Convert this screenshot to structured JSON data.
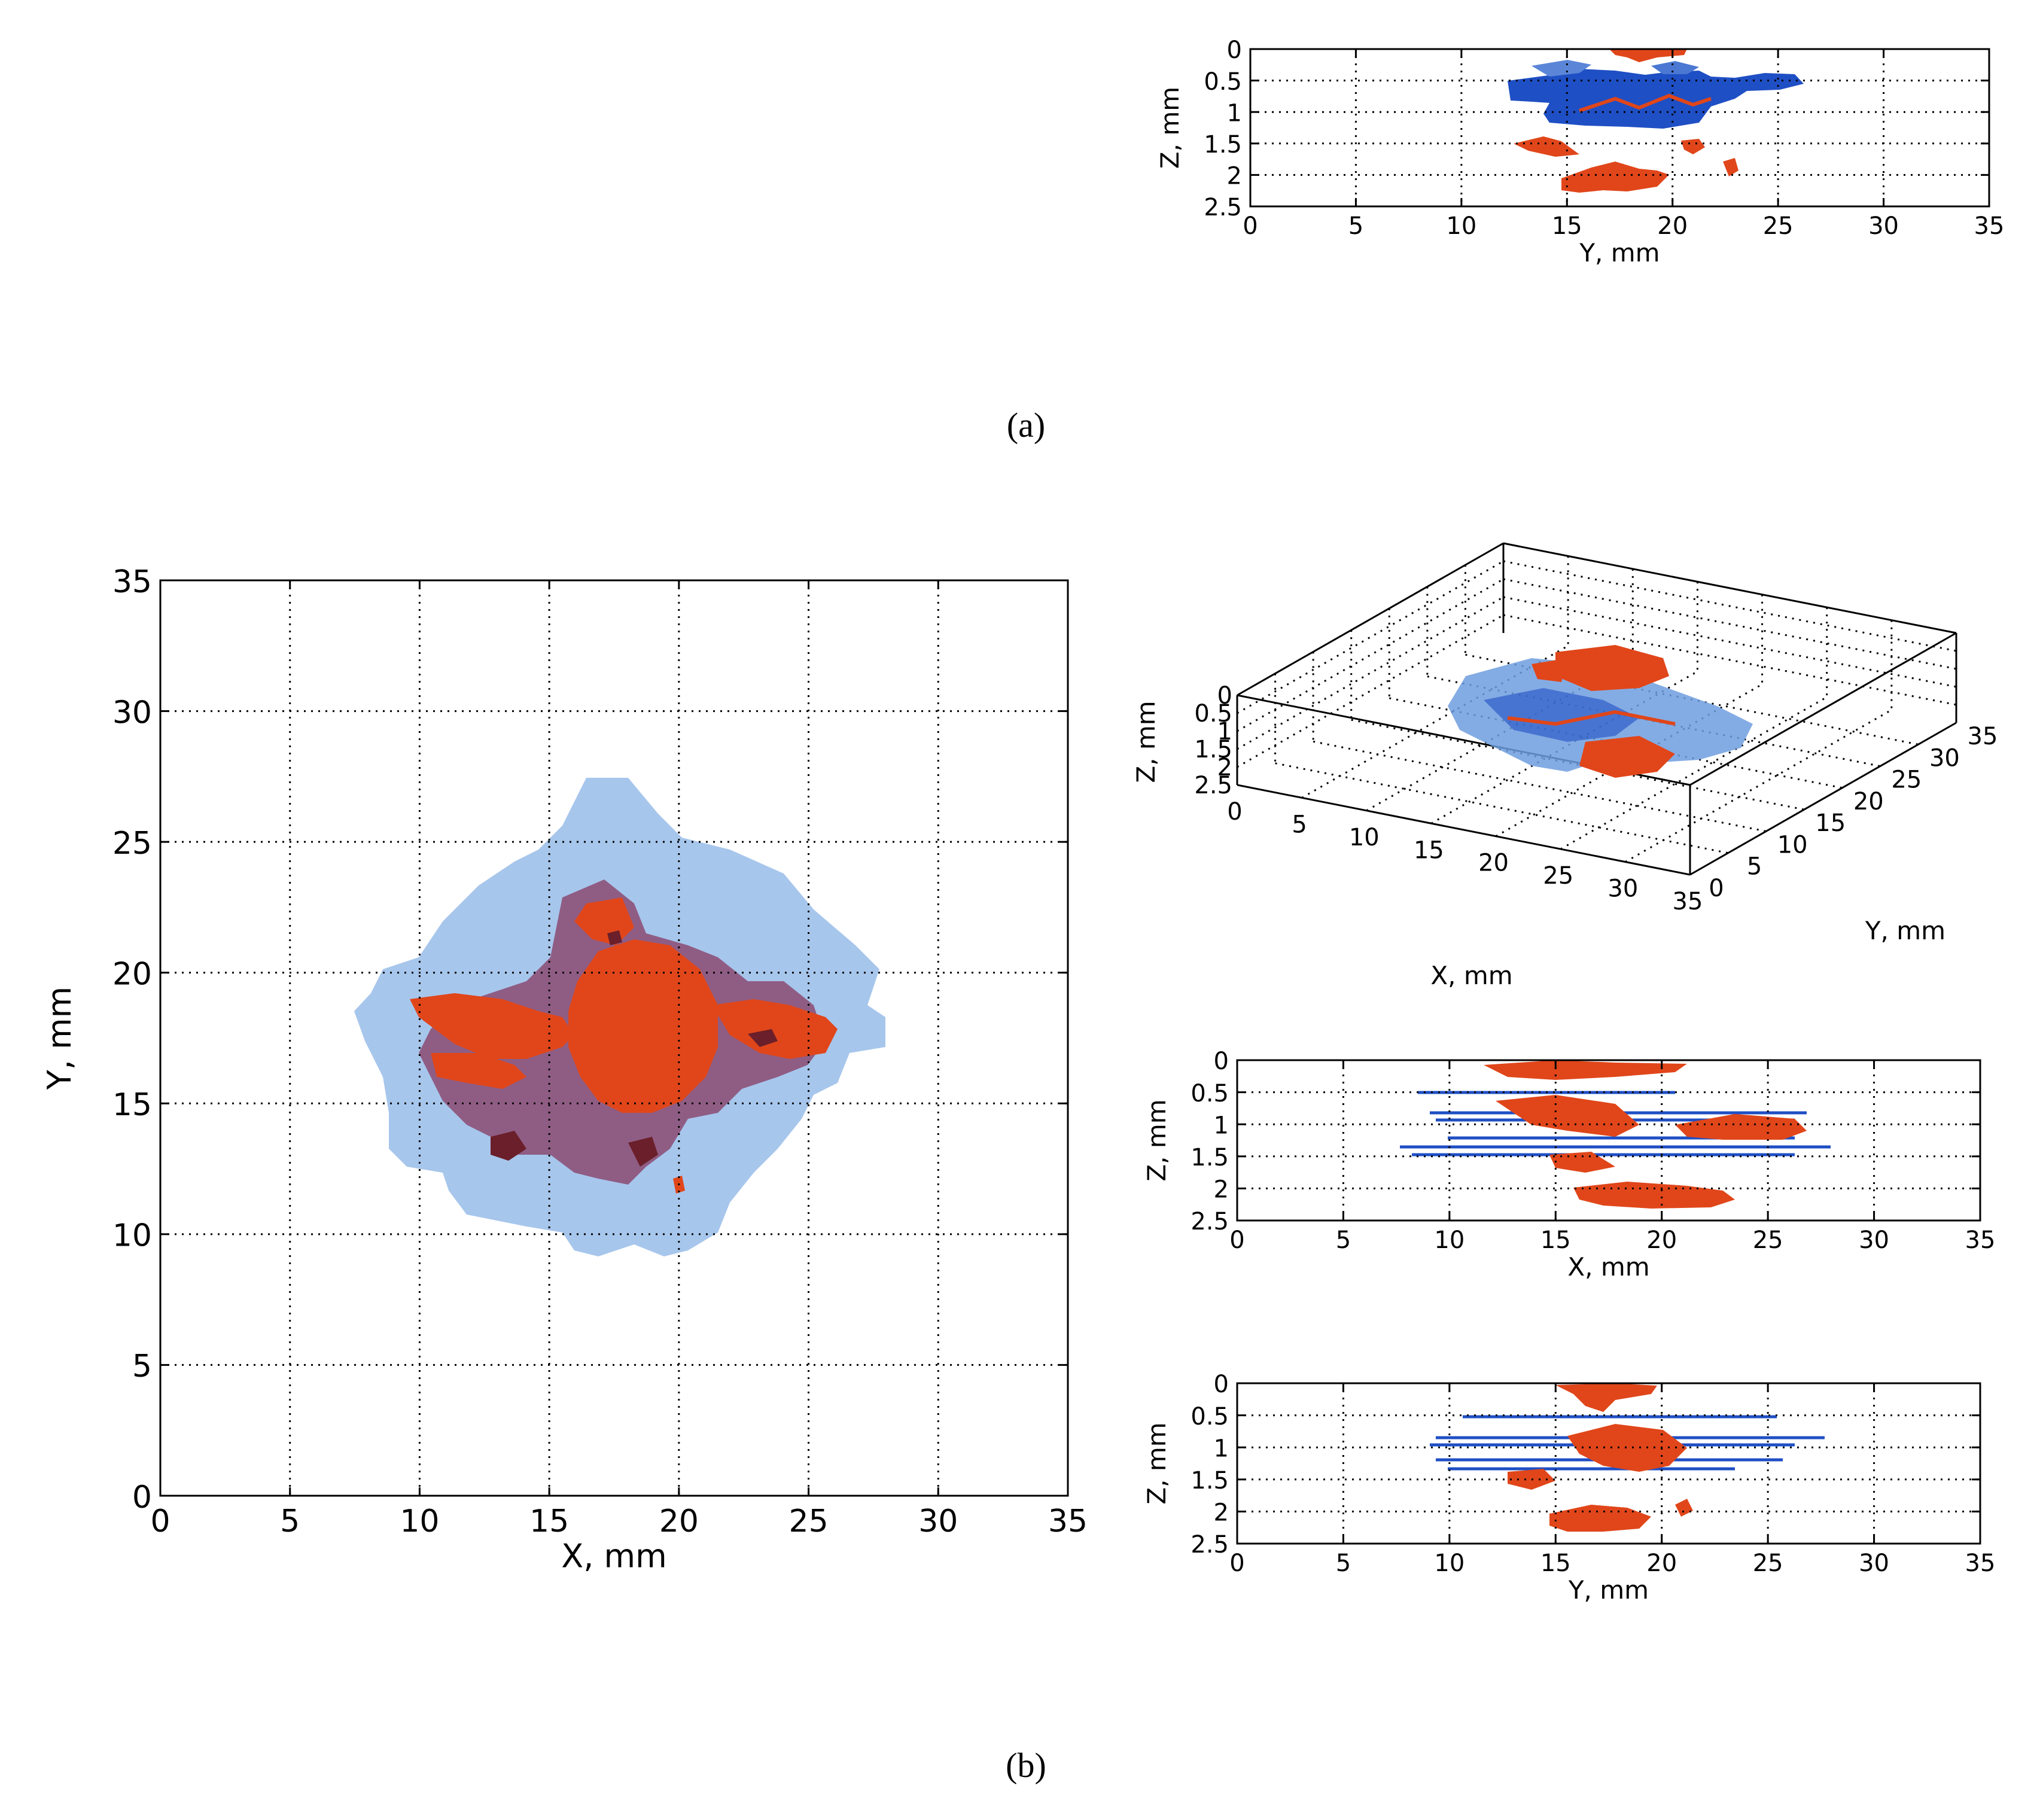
{
  "panels": {
    "a": {
      "caption": "(a)"
    },
    "b": {
      "caption": "(b)"
    }
  },
  "colors": {
    "damage_light": "#a7c6ec",
    "damage_blue": "#1f4fc4",
    "damage_red": "#e0461a",
    "damage_purple": "#8b4a72",
    "damage_dark": "#6b1f2a",
    "grid": "#000000"
  },
  "chart_data": [
    {
      "id": "a_side_zy",
      "panel": "(a)",
      "type": "heatmap",
      "xlabel": "Y, mm",
      "ylabel": "Z, mm",
      "xlim": [
        0,
        35
      ],
      "ylim": [
        2.5,
        0
      ],
      "xticks": [
        "0",
        "5",
        "10",
        "15",
        "20",
        "25",
        "30",
        "35"
      ],
      "yticks": [
        "0",
        "0.5",
        "1",
        "1.5",
        "2",
        "2.5"
      ],
      "grid": true,
      "regions": [
        {
          "color": "damage_blue",
          "y": [
            12.5,
            24
          ],
          "z": [
            0.45,
            1.2
          ]
        },
        {
          "color": "damage_red",
          "y": [
            14,
            21
          ],
          "z": [
            0,
            0.1
          ]
        },
        {
          "color": "damage_red",
          "y": [
            15,
            21
          ],
          "z": [
            1.85,
            2.2
          ]
        },
        {
          "color": "damage_red",
          "y": [
            12,
            23
          ],
          "z": [
            1.3,
            1.7
          ]
        }
      ]
    },
    {
      "id": "b_top_xy",
      "panel": "(b)",
      "type": "heatmap",
      "xlabel": "X, mm",
      "ylabel": "Y, mm",
      "xlim": [
        0,
        35
      ],
      "ylim": [
        0,
        35
      ],
      "xticks": [
        "0",
        "5",
        "10",
        "15",
        "20",
        "25",
        "30",
        "35"
      ],
      "yticks": [
        "0",
        "5",
        "10",
        "15",
        "20",
        "25",
        "30",
        "35"
      ],
      "grid": true,
      "regions": [
        {
          "color": "damage_light",
          "x": [
            7.5,
            28
          ],
          "y": [
            9.5,
            27.5
          ]
        },
        {
          "color": "damage_purple",
          "x": [
            9.5,
            26
          ],
          "y": [
            12,
            23.5
          ]
        },
        {
          "color": "damage_red",
          "x": [
            16,
            21
          ],
          "y": [
            15,
            21
          ]
        },
        {
          "color": "damage_red",
          "x": [
            9.5,
            26
          ],
          "y": [
            16.5,
            19
          ]
        }
      ]
    },
    {
      "id": "b_iso_3d",
      "panel": "(b)",
      "type": "scatter",
      "xlabel": "X, mm",
      "ylabel": "Y, mm",
      "zlabel": "Z, mm",
      "xlim": [
        0,
        35
      ],
      "ylim": [
        0,
        35
      ],
      "zlim": [
        2.5,
        0
      ],
      "xticks": [
        "0",
        "5",
        "10",
        "15",
        "20",
        "25",
        "30",
        "35"
      ],
      "yticks": [
        "0",
        "5",
        "10",
        "15",
        "20",
        "25",
        "30",
        "35"
      ],
      "zticks": [
        "0",
        "0.5",
        "1",
        "1.5",
        "2",
        "2.5"
      ],
      "grid": true
    },
    {
      "id": "b_side_zx",
      "panel": "(b)",
      "type": "heatmap",
      "xlabel": "X, mm",
      "ylabel": "Z, mm",
      "xlim": [
        0,
        35
      ],
      "ylim": [
        2.5,
        0
      ],
      "xticks": [
        "0",
        "5",
        "10",
        "15",
        "20",
        "25",
        "30",
        "35"
      ],
      "yticks": [
        "0",
        "0.5",
        "1",
        "1.5",
        "2",
        "2.5"
      ],
      "grid": true,
      "regions": [
        {
          "color": "damage_blue",
          "x": [
            8,
            28
          ],
          "z": [
            0.4,
            1.45
          ]
        },
        {
          "color": "damage_red",
          "x": [
            10,
            26
          ],
          "z": [
            0,
            1.3
          ]
        },
        {
          "color": "damage_red",
          "x": [
            15.5,
            24
          ],
          "z": [
            1.8,
            2.15
          ]
        }
      ]
    },
    {
      "id": "b_side_zy",
      "panel": "(b)",
      "type": "heatmap",
      "xlabel": "Y, mm",
      "ylabel": "Z, mm",
      "xlim": [
        0,
        35
      ],
      "ylim": [
        2.5,
        0
      ],
      "xticks": [
        "0",
        "5",
        "10",
        "15",
        "20",
        "25",
        "30",
        "35"
      ],
      "yticks": [
        "0",
        "0.5",
        "1",
        "1.5",
        "2",
        "2.5"
      ],
      "grid": true,
      "regions": [
        {
          "color": "damage_blue",
          "y": [
            9,
            27.5
          ],
          "z": [
            0.4,
            1.45
          ]
        },
        {
          "color": "damage_red",
          "y": [
            12,
            25
          ],
          "z": [
            0,
            1.7
          ]
        },
        {
          "color": "damage_red",
          "y": [
            14.5,
            20
          ],
          "z": [
            1.9,
            2.25
          ]
        }
      ]
    }
  ]
}
